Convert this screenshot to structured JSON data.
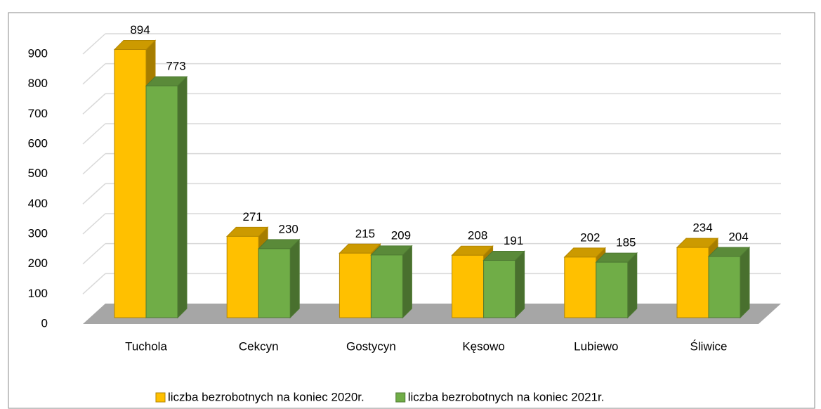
{
  "chart_data": {
    "type": "bar3d",
    "categories": [
      "Tuchola",
      "Cekcyn",
      "Gostycyn",
      "Kęsowo",
      "Lubiewo",
      "Śliwice"
    ],
    "series": [
      {
        "name": "liczba bezrobotnych na koniec 2020r.",
        "color": "#ffc000",
        "values": [
          894,
          271,
          215,
          208,
          202,
          234
        ]
      },
      {
        "name": "liczba bezrobotnych na koniec 2021r.",
        "color": "#70ad47",
        "values": [
          773,
          230,
          209,
          191,
          185,
          204
        ]
      }
    ],
    "ylim": [
      0,
      900
    ],
    "yticks": [
      0,
      100,
      200,
      300,
      400,
      500,
      600,
      700,
      800,
      900
    ],
    "grid": true,
    "legend": "bottom"
  }
}
